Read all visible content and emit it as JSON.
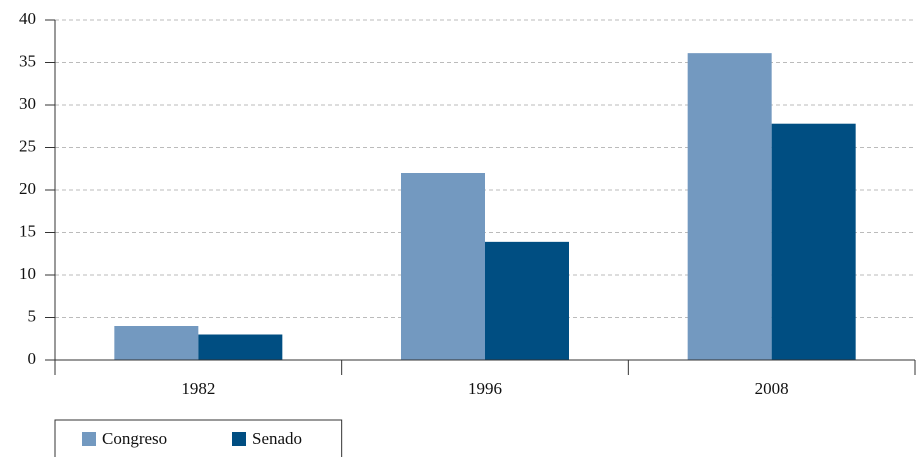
{
  "chart_data": {
    "type": "bar",
    "categories": [
      "1982",
      "1996",
      "2008"
    ],
    "series": [
      {
        "name": "Congreso",
        "color": "#7399c0",
        "values": [
          4,
          22,
          36.1
        ]
      },
      {
        "name": "Senado",
        "color": "#004e82",
        "values": [
          3,
          13.9,
          27.8
        ]
      }
    ],
    "ylim": [
      0,
      40
    ],
    "yticks": [
      0,
      5,
      10,
      15,
      20,
      25,
      30,
      35,
      40
    ],
    "grid": true,
    "legend": "bottom-left"
  }
}
